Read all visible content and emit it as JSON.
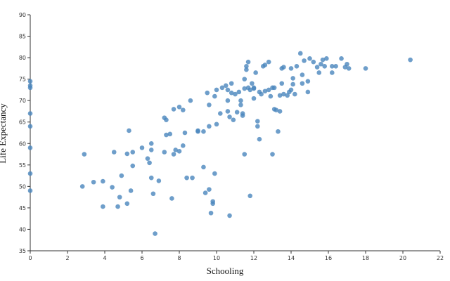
{
  "chart_data": {
    "type": "scatter",
    "xlabel": "Schooling",
    "ylabel": "Life Expectancy",
    "color": "#4a86bd",
    "xlim": [
      0,
      22
    ],
    "xticks": [
      0,
      2,
      4,
      6,
      8,
      10,
      12,
      14,
      16,
      18,
      20,
      22
    ],
    "ylim": [
      35,
      90
    ],
    "yticks": [
      35,
      40,
      45,
      50,
      55,
      60,
      65,
      70,
      75,
      80,
      85,
      90
    ],
    "x": [
      0,
      0,
      0,
      0,
      0,
      0,
      0,
      0,
      2.8,
      2.9,
      3.4,
      3.9,
      3.9,
      4.4,
      4.5,
      4.7,
      4.8,
      4.9,
      5.2,
      5.2,
      5.3,
      5.4,
      5.5,
      5.5,
      6,
      6.3,
      6.4,
      6.5,
      6.5,
      6.5,
      6.6,
      6.7,
      6.9,
      7.2,
      7.2,
      7.3,
      7.3,
      7.5,
      7.6,
      7.7,
      7.7,
      7.8,
      8,
      8,
      8.2,
      8.2,
      8.3,
      8.4,
      8.6,
      8.7,
      9,
      9,
      9.3,
      9.3,
      9.4,
      9.5,
      9.6,
      9.6,
      9.6,
      9.7,
      9.8,
      9.8,
      9.9,
      9.9,
      10,
      10,
      10.2,
      10.3,
      10.5,
      10.6,
      10.6,
      10.6,
      10.7,
      10.7,
      10.8,
      10.8,
      10.9,
      11,
      11.1,
      11.2,
      11.3,
      11.3,
      11.4,
      11.4,
      11.5,
      11.5,
      11.5,
      11.6,
      11.6,
      11.7,
      11.7,
      11.8,
      11.8,
      11.9,
      12,
      12,
      12,
      12.1,
      12.2,
      12.2,
      12.3,
      12.3,
      12.4,
      12.5,
      12.6,
      12.6,
      12.8,
      12.8,
      12.9,
      13,
      13,
      13.1,
      13.1,
      13.2,
      13.3,
      13.4,
      13.4,
      13.5,
      13.5,
      13.6,
      13.6,
      13.8,
      13.9,
      14,
      14,
      14.1,
      14.1,
      14.2,
      14.3,
      14.5,
      14.6,
      14.6,
      14.7,
      14.9,
      14.9,
      15,
      15.2,
      15.4,
      15.5,
      15.6,
      15.7,
      15.8,
      15.9,
      16.2,
      16.2,
      16.4,
      16.7,
      16.9,
      17,
      17.1,
      18,
      20.4
    ],
    "y": [
      74.5,
      73.5,
      73,
      67,
      64,
      59,
      53,
      49,
      50,
      57.5,
      51,
      51.2,
      45.3,
      49.8,
      58,
      45.3,
      47.5,
      52.5,
      46,
      57.6,
      63,
      49,
      54.8,
      58,
      59,
      56.5,
      55.5,
      58.5,
      60,
      52,
      48.3,
      39,
      51.3,
      58,
      66,
      65.5,
      62,
      62.2,
      47.2,
      57.5,
      68,
      58.5,
      58.2,
      68.5,
      59.5,
      67.8,
      62.5,
      52,
      70,
      52,
      62.8,
      63,
      62.8,
      54.5,
      48.5,
      71.8,
      64,
      69,
      49.3,
      43.8,
      46.5,
      46,
      53,
      71,
      72.5,
      64.5,
      67,
      73,
      73.5,
      72.5,
      70,
      67.5,
      43.2,
      66.2,
      71.8,
      74,
      65.5,
      71.5,
      67.3,
      72,
      70,
      69,
      66.5,
      67,
      57.5,
      72.8,
      75,
      77.2,
      78,
      79,
      73,
      47.8,
      72.5,
      74,
      72.8,
      73,
      70.5,
      76.5,
      65.2,
      64,
      61,
      72,
      71.5,
      78,
      78.3,
      72.2,
      79,
      72.5,
      71,
      73,
      57.5,
      73,
      68,
      67.8,
      62.8,
      67.5,
      71.2,
      74,
      77.5,
      77.8,
      71.5,
      71.2,
      72,
      77.5,
      72.5,
      73.8,
      75.2,
      71.5,
      78,
      81,
      74,
      76,
      79.3,
      72,
      74.5,
      79.8,
      79,
      77.8,
      76.5,
      78.5,
      79.5,
      78,
      79.8,
      78,
      76.5,
      78,
      79.8,
      77.8,
      78.5,
      77.5,
      77.5,
      79.5
    ]
  }
}
